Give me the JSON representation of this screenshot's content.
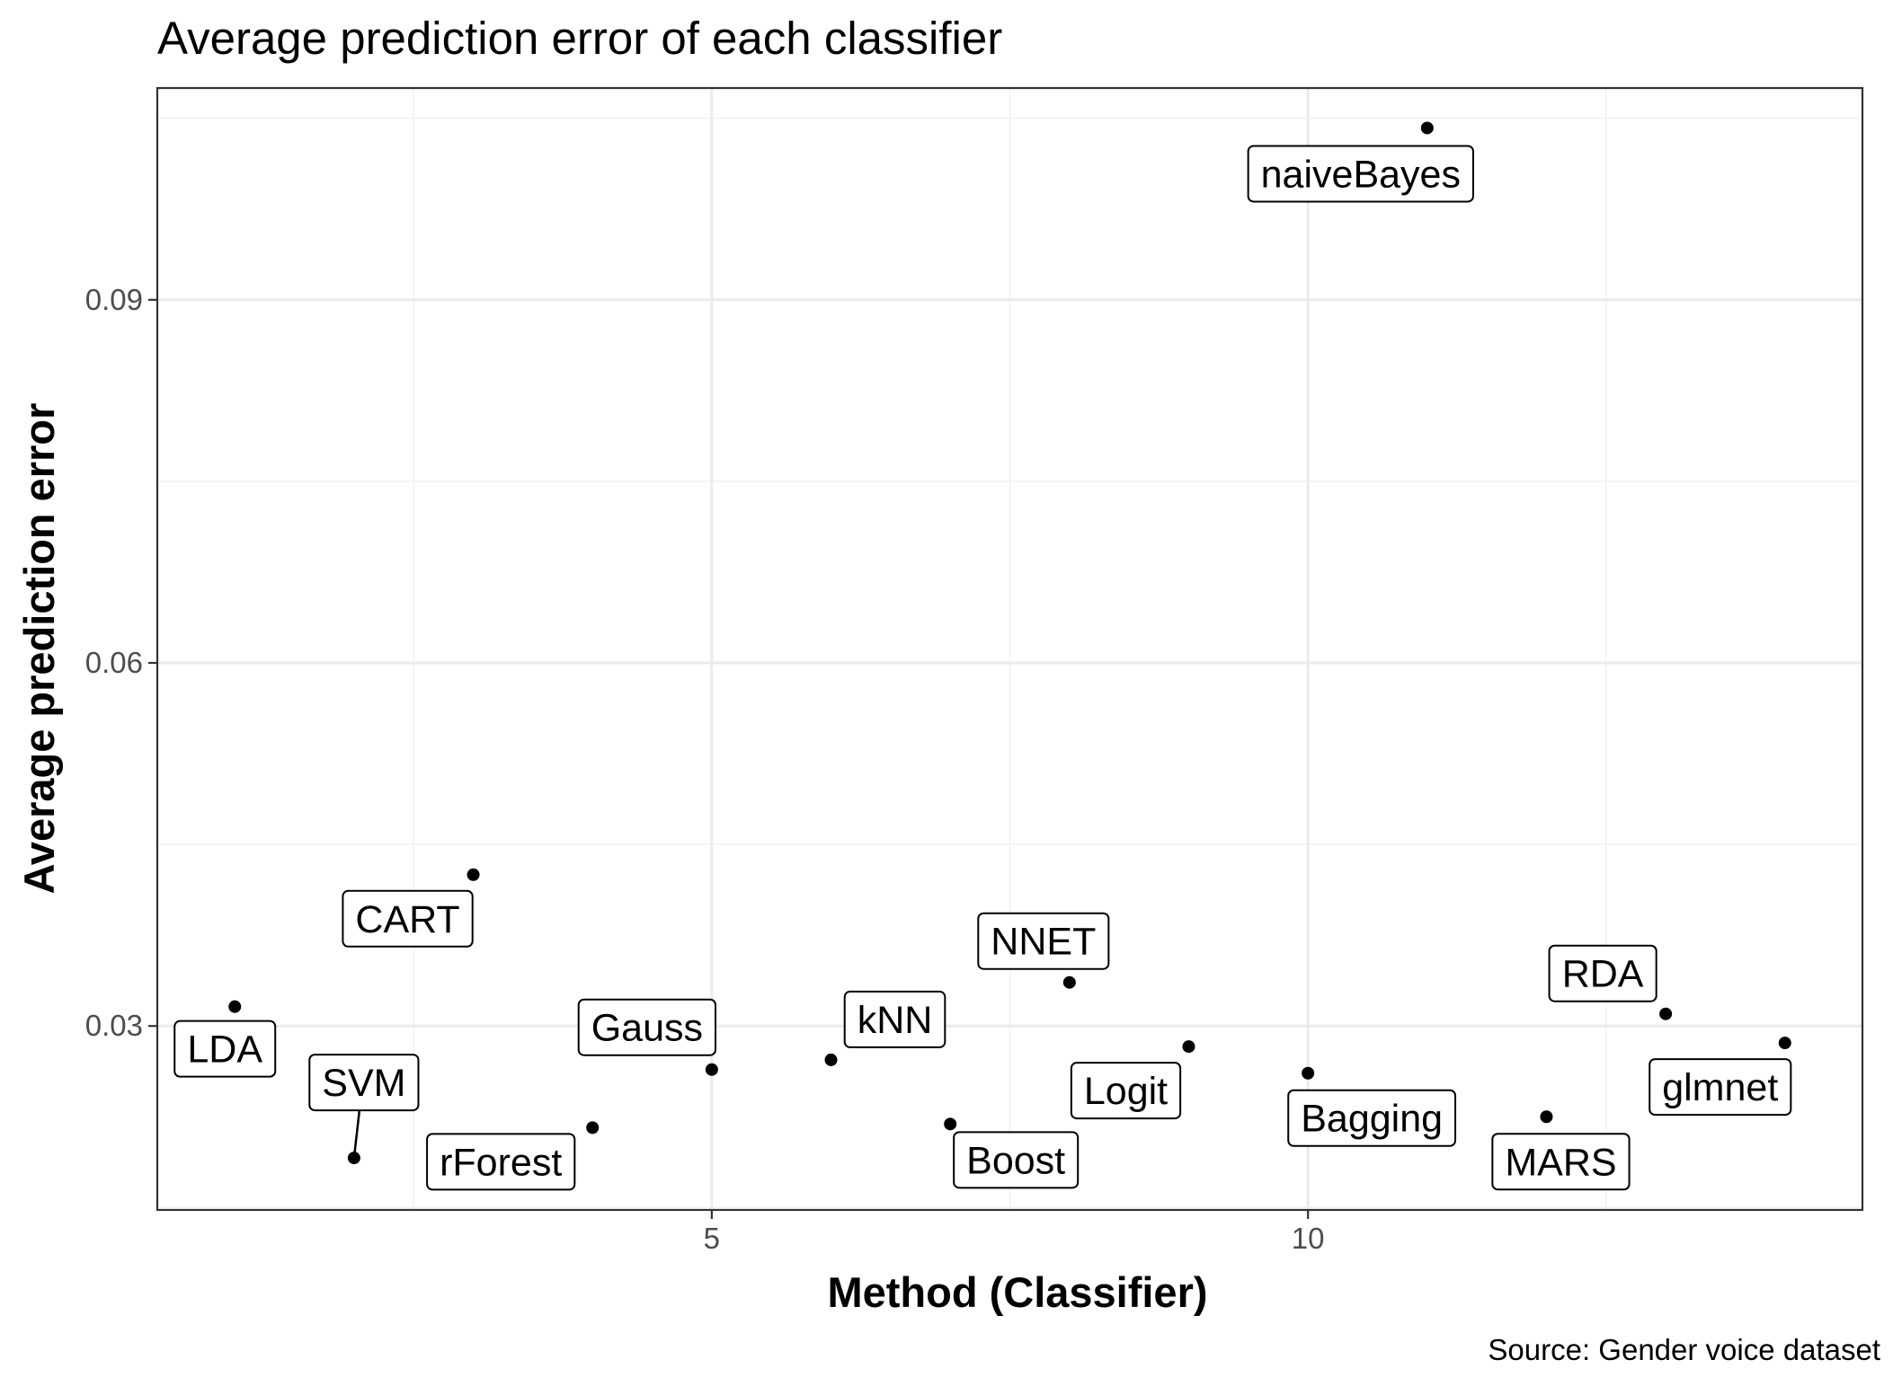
{
  "chart_data": {
    "type": "scatter",
    "title": "Average prediction error of each classifier",
    "xlabel": "Method (Classifier)",
    "ylabel": "Average prediction error",
    "caption": "Source: Gender voice dataset",
    "xlim": [
      0.35,
      14.65
    ],
    "ylim": [
      0.0148,
      0.1075
    ],
    "x_ticks": [
      {
        "value": 5,
        "label": "5"
      },
      {
        "value": 10,
        "label": "10"
      }
    ],
    "y_ticks": [
      {
        "value": 0.03,
        "label": "0.03"
      },
      {
        "value": 0.06,
        "label": "0.06"
      },
      {
        "value": 0.09,
        "label": "0.09"
      }
    ],
    "grid": true,
    "points": [
      {
        "x": 1,
        "y": 0.0316,
        "label": "LDA"
      },
      {
        "x": 2,
        "y": 0.0191,
        "label": "SVM"
      },
      {
        "x": 3,
        "y": 0.0425,
        "label": "CART"
      },
      {
        "x": 4,
        "y": 0.0216,
        "label": "rForest"
      },
      {
        "x": 5,
        "y": 0.0264,
        "label": "Gauss"
      },
      {
        "x": 6,
        "y": 0.0272,
        "label": "kNN"
      },
      {
        "x": 7,
        "y": 0.0219,
        "label": "Boost"
      },
      {
        "x": 8,
        "y": 0.0336,
        "label": "NNET"
      },
      {
        "x": 9,
        "y": 0.0283,
        "label": "Logit"
      },
      {
        "x": 10,
        "y": 0.0261,
        "label": "Bagging"
      },
      {
        "x": 11,
        "y": 0.1042,
        "label": "naiveBayes"
      },
      {
        "x": 12,
        "y": 0.0225,
        "label": "MARS"
      },
      {
        "x": 13,
        "y": 0.031,
        "label": "RDA"
      },
      {
        "x": 14,
        "y": 0.0286,
        "label": "glmnet"
      }
    ]
  }
}
